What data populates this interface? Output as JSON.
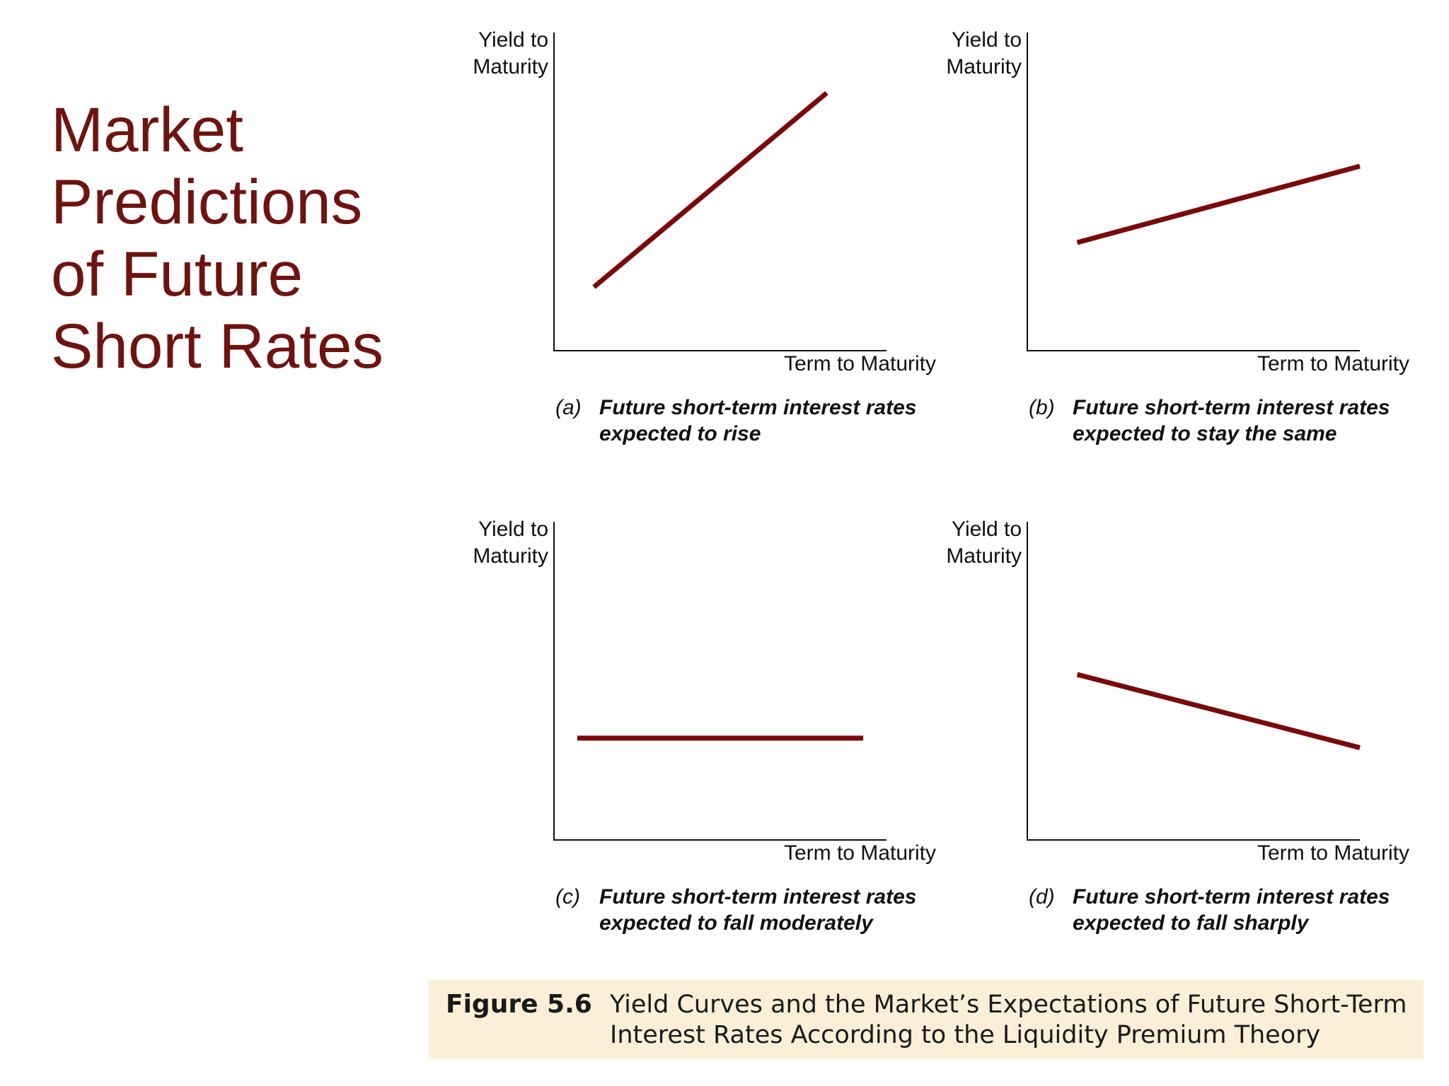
{
  "slide": {
    "title_lines": [
      "Market",
      "Predictions",
      "of Future",
      "Short Rates"
    ],
    "title_color": "#6e1410"
  },
  "figure": {
    "number": "Figure 5.6",
    "caption_lines": [
      "Yield Curves and the Market’s Expectations of Future Short-Term",
      "Interest Rates According to the Liquidity Premium Theory"
    ],
    "banner_color": "#fcefd8"
  },
  "chart_data": [
    {
      "type": "line",
      "panel_letter": "(a)",
      "caption_lines": [
        "Future short-term interest rates",
        "expected to rise"
      ],
      "ylabel_lines": [
        "Yield to",
        "Maturity"
      ],
      "xlabel": "Term to Maturity",
      "xlim": [
        0,
        100
      ],
      "ylim": [
        0,
        100
      ],
      "line_color": "#7a0a0a",
      "series": [
        {
          "x": [
            12,
            82
          ],
          "y": [
            20,
            81
          ]
        }
      ]
    },
    {
      "type": "line",
      "panel_letter": "(b)",
      "caption_lines": [
        "Future short-term interest rates",
        "expected to stay the same"
      ],
      "ylabel_lines": [
        "Yield to",
        "Maturity"
      ],
      "xlabel": "Term to Maturity",
      "xlim": [
        0,
        100
      ],
      "ylim": [
        0,
        100
      ],
      "line_color": "#7a0a0a",
      "series": [
        {
          "x": [
            15,
            100
          ],
          "y": [
            34,
            58
          ]
        }
      ]
    },
    {
      "type": "line",
      "panel_letter": "(c)",
      "caption_lines": [
        "Future short-term interest rates",
        "expected to fall moderately"
      ],
      "ylabel_lines": [
        "Yield to",
        "Maturity"
      ],
      "xlabel": "Term to Maturity",
      "xlim": [
        0,
        100
      ],
      "ylim": [
        0,
        100
      ],
      "line_color": "#7a0a0a",
      "series": [
        {
          "x": [
            7,
            93
          ],
          "y": [
            32,
            32
          ]
        }
      ]
    },
    {
      "type": "line",
      "panel_letter": "(d)",
      "caption_lines": [
        "Future short-term interest rates",
        "expected to fall sharply"
      ],
      "ylabel_lines": [
        "Yield to",
        "Maturity"
      ],
      "xlabel": "Term to Maturity",
      "xlim": [
        0,
        100
      ],
      "ylim": [
        0,
        100
      ],
      "line_color": "#7a0a0a",
      "series": [
        {
          "x": [
            15,
            100
          ],
          "y": [
            52,
            29
          ]
        }
      ]
    }
  ]
}
